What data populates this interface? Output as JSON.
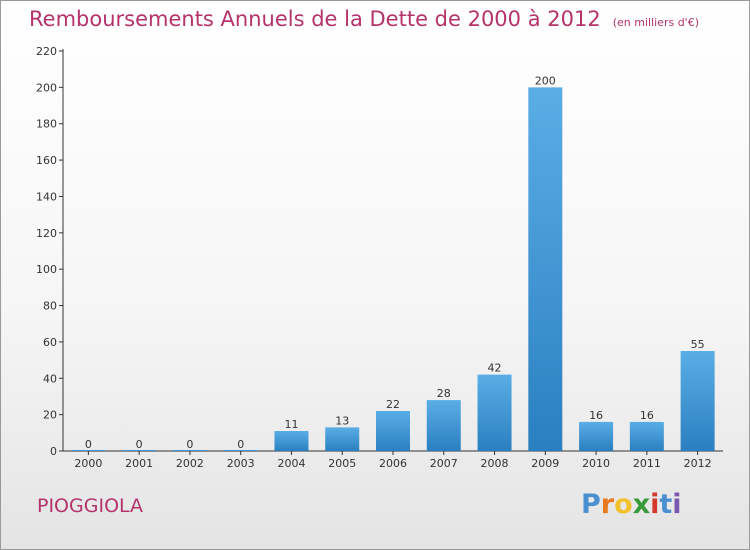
{
  "header": {
    "title": "Remboursements Annuels de la Dette de 2000 à 2012",
    "subtitle": "(en milliers d'€)"
  },
  "footer": {
    "commune": "PIOGGIOLA",
    "logo_letters": [
      "P",
      "r",
      "o",
      "x",
      "i",
      "t",
      "i"
    ]
  },
  "colors": {
    "title": "#b5336b",
    "bar_light": "#5aaee6",
    "bar_dark": "#2a7fc0",
    "logo": [
      "#4a8fd0",
      "#e8781e",
      "#f2c12e",
      "#3a9a3a",
      "#d4382c",
      "#4a8fd0",
      "#7a58b0"
    ]
  },
  "chart_data": {
    "type": "bar",
    "title": "Remboursements Annuels de la Dette de 2000 à 2012",
    "ylabel": "en milliers d'€",
    "xlabel": "",
    "categories": [
      "2000",
      "2001",
      "2002",
      "2003",
      "2004",
      "2005",
      "2006",
      "2007",
      "2008",
      "2009",
      "2010",
      "2011",
      "2012"
    ],
    "values": [
      0,
      0,
      0,
      0,
      11,
      13,
      22,
      28,
      42,
      200,
      16,
      16,
      55
    ],
    "ylim": [
      0,
      220
    ],
    "yticks": [
      0,
      20,
      40,
      60,
      80,
      100,
      120,
      140,
      160,
      180,
      200,
      220
    ],
    "grid": false
  }
}
